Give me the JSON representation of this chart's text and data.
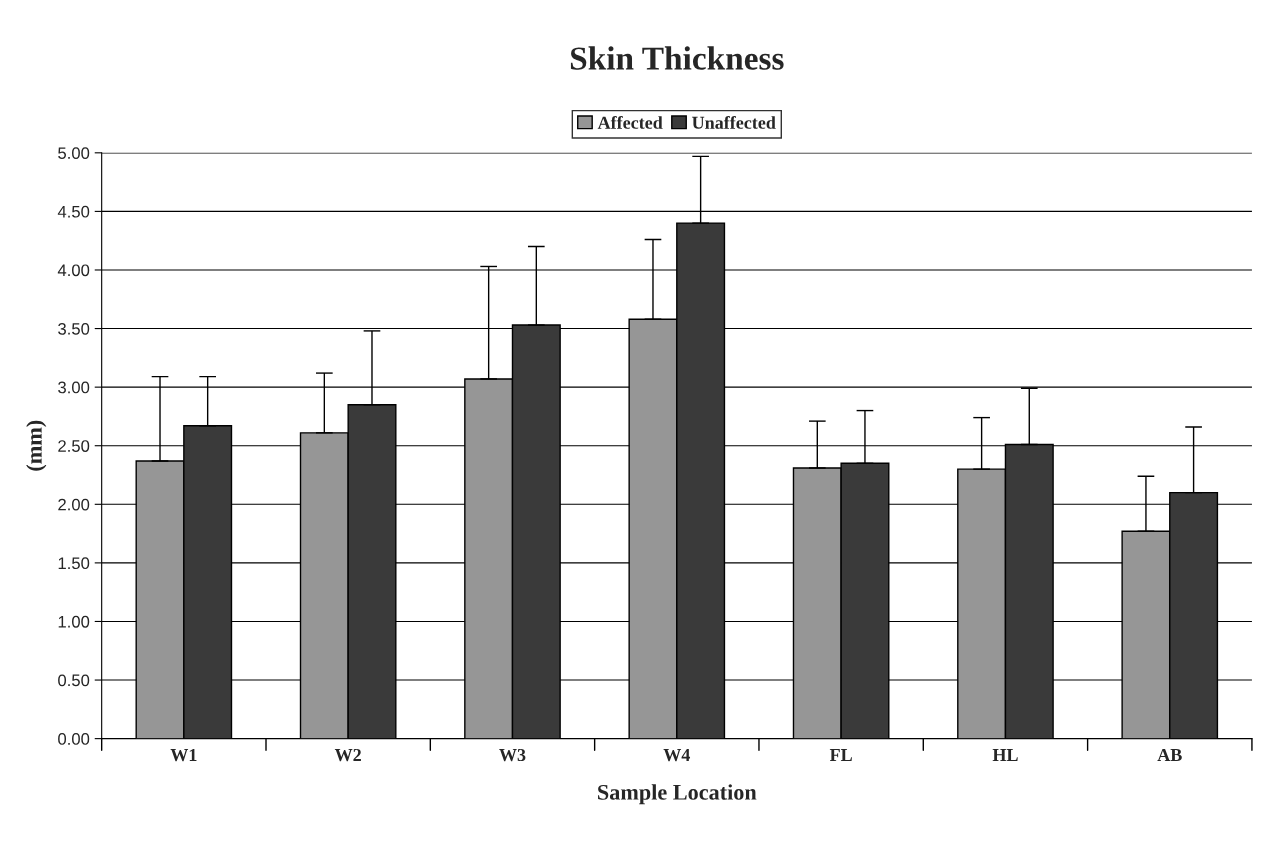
{
  "chart_data": {
    "type": "bar",
    "title": "Skin Thickness",
    "xlabel": "Sample Location",
    "ylabel": "(mm)",
    "categories": [
      "W1",
      "W2",
      "W3",
      "W4",
      "FL",
      "HL",
      "AB"
    ],
    "series": [
      {
        "name": "Affected",
        "color": "#969696",
        "values": [
          2.37,
          2.61,
          3.07,
          3.58,
          2.31,
          2.3,
          1.77
        ],
        "errors": [
          [
            2.37,
            3.09
          ],
          [
            2.61,
            3.12
          ],
          [
            3.07,
            4.03
          ],
          [
            3.58,
            4.26
          ],
          [
            2.31,
            2.71
          ],
          [
            2.3,
            2.74
          ],
          [
            1.77,
            2.24
          ]
        ]
      },
      {
        "name": "Unaffected",
        "color": "#3a3a3a",
        "values": [
          2.67,
          2.85,
          3.53,
          4.4,
          2.35,
          2.51,
          2.1
        ],
        "errors": [
          [
            2.67,
            3.09
          ],
          [
            2.85,
            3.48
          ],
          [
            3.53,
            4.2
          ],
          [
            4.4,
            4.97
          ],
          [
            2.35,
            2.8
          ],
          [
            2.51,
            2.99
          ],
          [
            2.1,
            2.66
          ]
        ]
      }
    ],
    "ylim": [
      0,
      5
    ],
    "yticks": [
      {
        "value": 0,
        "label": "0.00"
      },
      {
        "value": 0.5,
        "label": "0.50"
      },
      {
        "value": 1,
        "label": "1.00"
      },
      {
        "value": 1.5,
        "label": "1.50"
      },
      {
        "value": 2,
        "label": "2.00"
      },
      {
        "value": 2.5,
        "label": "2.50"
      },
      {
        "value": 3,
        "label": "3.00"
      },
      {
        "value": 3.5,
        "label": "3.50"
      },
      {
        "value": 4,
        "label": "4.00"
      },
      {
        "value": 4.5,
        "label": "4.50"
      },
      {
        "value": 5,
        "label": "5.00"
      }
    ],
    "grid": "y",
    "legend": "top"
  }
}
